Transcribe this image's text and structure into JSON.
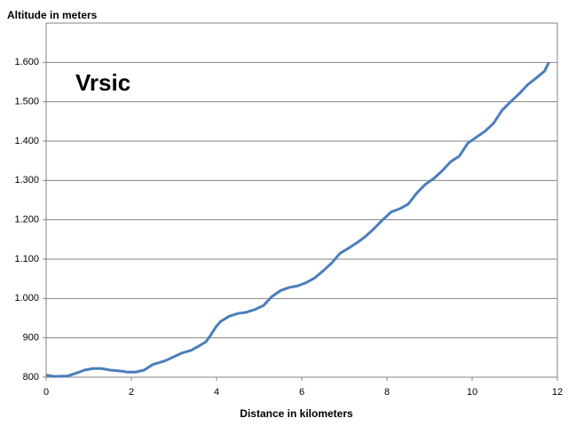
{
  "chart_data": {
    "type": "line",
    "ylabel": "Altitude in meters",
    "xlabel": "Distance in kilometers",
    "annotation": "Vrsic",
    "xlim": [
      0,
      12
    ],
    "xticks": [
      0,
      2,
      4,
      6,
      8,
      10,
      12
    ],
    "ylim": [
      800,
      1700
    ],
    "yticks": [
      800,
      900,
      {
        "value": 1000,
        "label": "1.000"
      },
      {
        "value": 1100,
        "label": "1.100"
      },
      {
        "value": 1200,
        "label": "1.200"
      },
      {
        "value": 1300,
        "label": "1.300"
      },
      {
        "value": 1400,
        "label": "1.400"
      },
      {
        "value": 1500,
        "label": "1.500"
      },
      {
        "value": 1600,
        "label": "1.600"
      }
    ],
    "grid": true,
    "color": "#4a7ebb",
    "annotation_color": "#8b0a1a",
    "x": [
      0,
      0.2,
      0.5,
      0.7,
      0.9,
      1.1,
      1.3,
      1.5,
      1.8,
      1.9,
      2.1,
      2.3,
      2.5,
      2.8,
      3.0,
      3.2,
      3.4,
      3.6,
      3.75,
      3.85,
      4.0,
      4.1,
      4.3,
      4.5,
      4.7,
      4.9,
      5.1,
      5.3,
      5.5,
      5.7,
      5.9,
      6.1,
      6.3,
      6.5,
      6.7,
      6.9,
      7.1,
      7.3,
      7.5,
      7.7,
      7.9,
      8.1,
      8.3,
      8.5,
      8.7,
      8.9,
      9.1,
      9.3,
      9.5,
      9.7,
      9.9,
      10.1,
      10.3,
      10.5,
      10.7,
      10.9,
      11.1,
      11.3,
      11.5,
      11.7,
      11.8
    ],
    "values": [
      805,
      802,
      803,
      810,
      818,
      822,
      822,
      818,
      815,
      813,
      813,
      818,
      832,
      842,
      852,
      862,
      868,
      880,
      890,
      905,
      930,
      942,
      955,
      962,
      965,
      972,
      982,
      1005,
      1020,
      1028,
      1032,
      1040,
      1052,
      1070,
      1090,
      1115,
      1128,
      1142,
      1158,
      1178,
      1200,
      1220,
      1228,
      1240,
      1268,
      1290,
      1305,
      1325,
      1348,
      1362,
      1395,
      1410,
      1425,
      1445,
      1478,
      1500,
      1520,
      1543,
      1560,
      1578,
      1600
    ]
  }
}
